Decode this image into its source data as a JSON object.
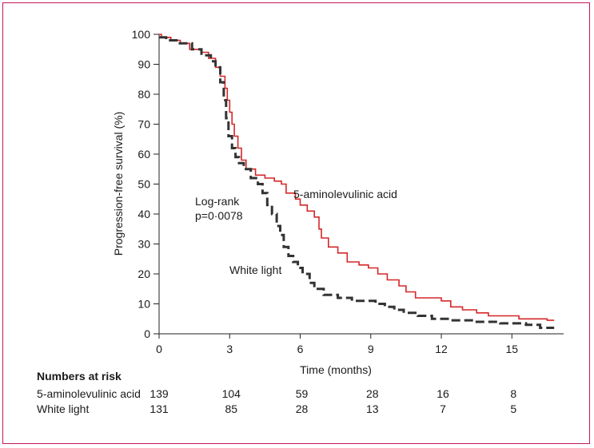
{
  "chart_data": {
    "type": "line",
    "xlabel": "Time (months)",
    "ylabel": "Progression-free survival (%)",
    "xlim": [
      0,
      17.2
    ],
    "ylim": [
      0,
      100
    ],
    "x_ticks": [
      0,
      3,
      6,
      9,
      12,
      15
    ],
    "y_ticks": [
      0,
      10,
      20,
      30,
      40,
      50,
      60,
      70,
      80,
      90,
      100
    ],
    "grid": false,
    "annotations": {
      "logrank_line1": "Log-rank",
      "logrank_line2": "p=0·0078"
    },
    "series": [
      {
        "name": "5-aminolevulinic acid",
        "color": "#d62728",
        "style": "solid",
        "points": [
          [
            0,
            100
          ],
          [
            0.1,
            99
          ],
          [
            0.5,
            98
          ],
          [
            0.9,
            97
          ],
          [
            1.3,
            95
          ],
          [
            1.8,
            94
          ],
          [
            2.1,
            92
          ],
          [
            2.4,
            89
          ],
          [
            2.6,
            86
          ],
          [
            2.8,
            82
          ],
          [
            2.9,
            78
          ],
          [
            3.0,
            74
          ],
          [
            3.1,
            70
          ],
          [
            3.2,
            66
          ],
          [
            3.35,
            62
          ],
          [
            3.5,
            58
          ],
          [
            3.7,
            55
          ],
          [
            4.1,
            53
          ],
          [
            4.5,
            52
          ],
          [
            4.9,
            51
          ],
          [
            5.2,
            50
          ],
          [
            5.4,
            47
          ],
          [
            5.8,
            45
          ],
          [
            6.0,
            43
          ],
          [
            6.3,
            41
          ],
          [
            6.6,
            39
          ],
          [
            6.8,
            35
          ],
          [
            6.9,
            32
          ],
          [
            7.2,
            29
          ],
          [
            7.6,
            27
          ],
          [
            8.0,
            24
          ],
          [
            8.5,
            23
          ],
          [
            8.9,
            22
          ],
          [
            9.3,
            20
          ],
          [
            9.7,
            18
          ],
          [
            10.2,
            16
          ],
          [
            10.5,
            14
          ],
          [
            10.9,
            12
          ],
          [
            11.6,
            12
          ],
          [
            12.0,
            11
          ],
          [
            12.4,
            9
          ],
          [
            12.9,
            8
          ],
          [
            13.5,
            7
          ],
          [
            14.0,
            6
          ],
          [
            15.3,
            5
          ],
          [
            16.5,
            4.5
          ],
          [
            16.8,
            4.5
          ]
        ]
      },
      {
        "name": "White light",
        "color": "#333333",
        "style": "dashed",
        "points": [
          [
            0,
            99
          ],
          [
            0.3,
            98
          ],
          [
            0.8,
            97
          ],
          [
            1.4,
            95
          ],
          [
            1.8,
            93
          ],
          [
            2.2,
            91
          ],
          [
            2.4,
            89
          ],
          [
            2.6,
            84
          ],
          [
            2.75,
            78
          ],
          [
            2.85,
            72
          ],
          [
            2.95,
            66
          ],
          [
            3.1,
            62
          ],
          [
            3.25,
            59
          ],
          [
            3.4,
            57
          ],
          [
            3.6,
            55
          ],
          [
            3.9,
            52
          ],
          [
            4.2,
            50
          ],
          [
            4.4,
            47
          ],
          [
            4.6,
            43
          ],
          [
            4.8,
            40
          ],
          [
            5.0,
            36
          ],
          [
            5.15,
            33
          ],
          [
            5.3,
            29
          ],
          [
            5.5,
            26
          ],
          [
            5.7,
            24
          ],
          [
            5.9,
            22
          ],
          [
            6.1,
            20
          ],
          [
            6.4,
            17
          ],
          [
            6.6,
            15
          ],
          [
            7.0,
            13
          ],
          [
            7.6,
            12
          ],
          [
            8.2,
            11
          ],
          [
            8.8,
            11
          ],
          [
            9.2,
            10
          ],
          [
            9.6,
            9
          ],
          [
            10.0,
            8
          ],
          [
            10.4,
            7
          ],
          [
            11.0,
            6
          ],
          [
            11.6,
            5
          ],
          [
            12.4,
            4.5
          ],
          [
            13.4,
            4
          ],
          [
            14.5,
            3.5
          ],
          [
            15.6,
            3
          ],
          [
            16.2,
            2
          ],
          [
            16.8,
            2
          ]
        ]
      }
    ]
  },
  "risk_table": {
    "title": "Numbers at risk",
    "times": [
      0,
      3,
      6,
      9,
      12,
      15
    ],
    "rows": [
      {
        "label": "5-aminolevulinic acid",
        "values": [
          "139",
          "104",
          "59",
          "28",
          "16",
          "8"
        ]
      },
      {
        "label": "White light",
        "values": [
          "131",
          "85",
          "28",
          "13",
          "7",
          "5"
        ]
      }
    ]
  }
}
